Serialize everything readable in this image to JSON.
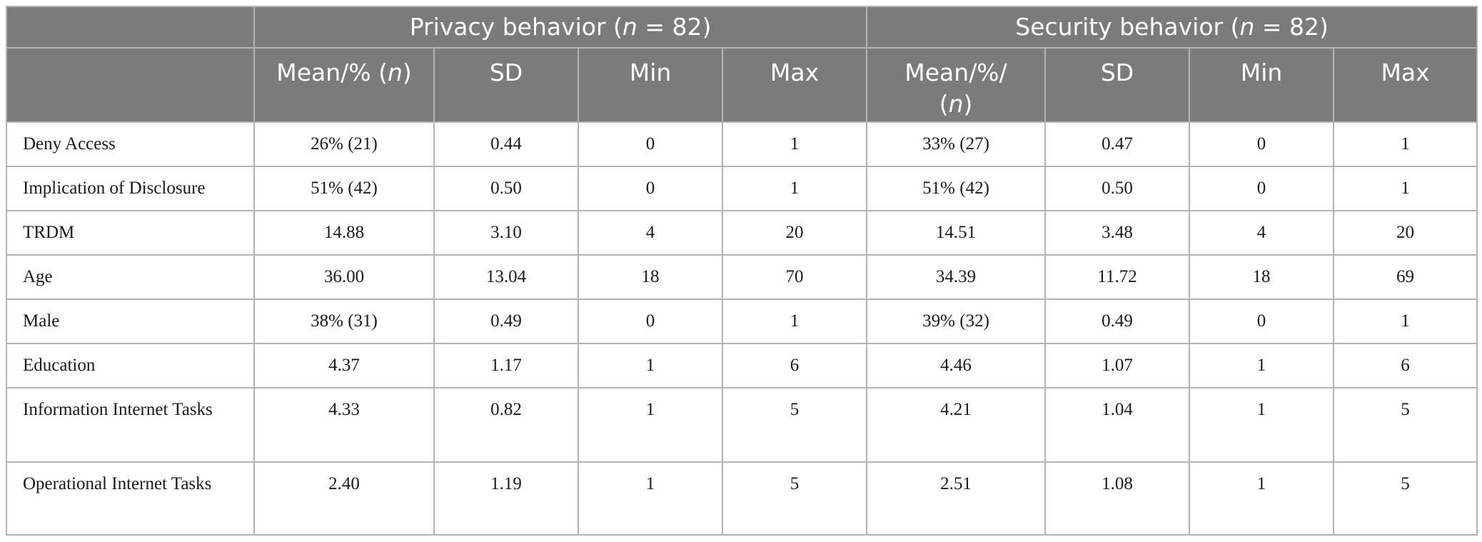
{
  "header": {
    "groups": [
      {
        "pre": "Privacy behavior (",
        "n_var": "n",
        "post": " = 82)"
      },
      {
        "pre": "Security behavior (",
        "n_var": "n",
        "post": " = 82)"
      }
    ],
    "columns": {
      "privacy_mean": {
        "pre": "Mean/% (",
        "n_var": "n",
        "post": ")"
      },
      "privacy_sd": "SD",
      "privacy_min": "Min",
      "privacy_max": "Max",
      "security_mean": {
        "line1": "Mean/%/",
        "pre": "(",
        "n_var": "n",
        "post": ")"
      },
      "security_sd": "SD",
      "security_min": "Min",
      "security_max": "Max"
    }
  },
  "rows": [
    {
      "label": "Deny Access",
      "p_mean": "26% (21)",
      "p_sd": "0.44",
      "p_min": "0",
      "p_max": "1",
      "s_mean": "33% (27)",
      "s_sd": "0.47",
      "s_min": "0",
      "s_max": "1"
    },
    {
      "label": "Implication of Disclosure",
      "p_mean": "51% (42)",
      "p_sd": "0.50",
      "p_min": "0",
      "p_max": "1",
      "s_mean": "51% (42)",
      "s_sd": "0.50",
      "s_min": "0",
      "s_max": "1"
    },
    {
      "label": "TRDM",
      "p_mean": "14.88",
      "p_sd": "3.10",
      "p_min": "4",
      "p_max": "20",
      "s_mean": "14.51",
      "s_sd": "3.48",
      "s_min": "4",
      "s_max": "20"
    },
    {
      "label": "Age",
      "p_mean": "36.00",
      "p_sd": "13.04",
      "p_min": "18",
      "p_max": "70",
      "s_mean": "34.39",
      "s_sd": "11.72",
      "s_min": "18",
      "s_max": "69"
    },
    {
      "label": "Male",
      "p_mean": "38% (31)",
      "p_sd": "0.49",
      "p_min": "0",
      "p_max": "1",
      "s_mean": "39% (32)",
      "s_sd": "0.49",
      "s_min": "0",
      "s_max": "1"
    },
    {
      "label": "Education",
      "p_mean": "4.37",
      "p_sd": "1.17",
      "p_min": "1",
      "p_max": "6",
      "s_mean": "4.46",
      "s_sd": "1.07",
      "s_min": "1",
      "s_max": "6"
    },
    {
      "label": "Information Internet Tasks",
      "p_mean": "4.33",
      "p_sd": "0.82",
      "p_min": "1",
      "p_max": "5",
      "s_mean": "4.21",
      "s_sd": "1.04",
      "s_min": "1",
      "s_max": "5"
    },
    {
      "label": "Operational Internet Tasks",
      "p_mean": "2.40",
      "p_sd": "1.19",
      "p_min": "1",
      "p_max": "5",
      "s_mean": "2.51",
      "s_sd": "1.08",
      "s_min": "1",
      "s_max": "5"
    }
  ]
}
